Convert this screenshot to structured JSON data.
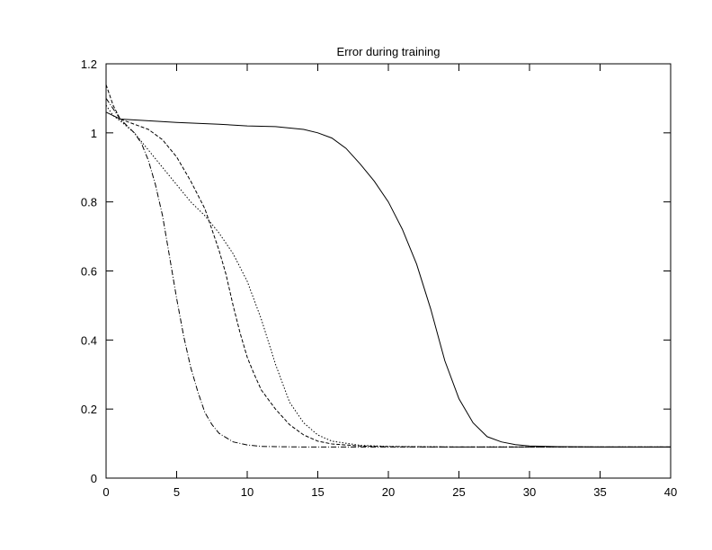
{
  "chart_data": {
    "type": "line",
    "title": "Error during training",
    "xlabel": "",
    "ylabel": "",
    "xlim": [
      0,
      40
    ],
    "ylim": [
      0,
      1.2
    ],
    "xticks": [
      0,
      5,
      10,
      15,
      20,
      25,
      30,
      35,
      40
    ],
    "yticks": [
      0,
      0.2,
      0.4,
      0.6,
      0.8,
      1,
      1.2
    ],
    "grid": false,
    "legend": "none",
    "series": [
      {
        "dash": "solid",
        "x": [
          0,
          1,
          3,
          5,
          8,
          10,
          12,
          14,
          15,
          16,
          17,
          18,
          19,
          20,
          21,
          22,
          23,
          24,
          25,
          26,
          27,
          28,
          29,
          30,
          32,
          35,
          40
        ],
        "y": [
          1.06,
          1.04,
          1.035,
          1.03,
          1.025,
          1.02,
          1.018,
          1.01,
          1.0,
          0.985,
          0.955,
          0.91,
          0.86,
          0.8,
          0.72,
          0.62,
          0.49,
          0.34,
          0.23,
          0.16,
          0.12,
          0.105,
          0.097,
          0.093,
          0.091,
          0.09,
          0.09
        ]
      },
      {
        "dash": "dashdot",
        "x": [
          0,
          1,
          2,
          2.5,
          3,
          3.5,
          4,
          4.5,
          5,
          5.5,
          6,
          6.5,
          7,
          7.5,
          8,
          9,
          10,
          11,
          12,
          14,
          16,
          20,
          25,
          30,
          35,
          40
        ],
        "y": [
          1.1,
          1.04,
          1.0,
          0.97,
          0.92,
          0.85,
          0.76,
          0.64,
          0.52,
          0.41,
          0.32,
          0.25,
          0.19,
          0.155,
          0.13,
          0.105,
          0.096,
          0.092,
          0.091,
          0.09,
          0.09,
          0.09,
          0.09,
          0.09,
          0.09,
          0.09
        ]
      },
      {
        "dash": "dashed",
        "x": [
          0,
          0.5,
          1,
          2,
          3,
          4,
          5,
          6,
          7,
          8,
          8.5,
          9,
          9.5,
          10,
          10.5,
          11,
          12,
          13,
          14,
          15,
          16,
          18,
          20,
          25,
          30,
          35,
          40
        ],
        "y": [
          1.14,
          1.08,
          1.04,
          1.025,
          1.01,
          0.98,
          0.93,
          0.86,
          0.78,
          0.66,
          0.59,
          0.5,
          0.42,
          0.35,
          0.3,
          0.255,
          0.2,
          0.155,
          0.125,
          0.107,
          0.099,
          0.093,
          0.091,
          0.09,
          0.09,
          0.09,
          0.09
        ]
      },
      {
        "dash": "dotted",
        "x": [
          0,
          0.5,
          1,
          2,
          3,
          4,
          5,
          6,
          7,
          8,
          9,
          10,
          11,
          12,
          13,
          14,
          15,
          16,
          18,
          20,
          25,
          30,
          35,
          40
        ],
        "y": [
          1.08,
          1.05,
          1.035,
          1.0,
          0.95,
          0.9,
          0.85,
          0.8,
          0.76,
          0.71,
          0.65,
          0.57,
          0.46,
          0.33,
          0.22,
          0.16,
          0.125,
          0.107,
          0.095,
          0.092,
          0.09,
          0.09,
          0.09,
          0.09
        ]
      }
    ]
  }
}
